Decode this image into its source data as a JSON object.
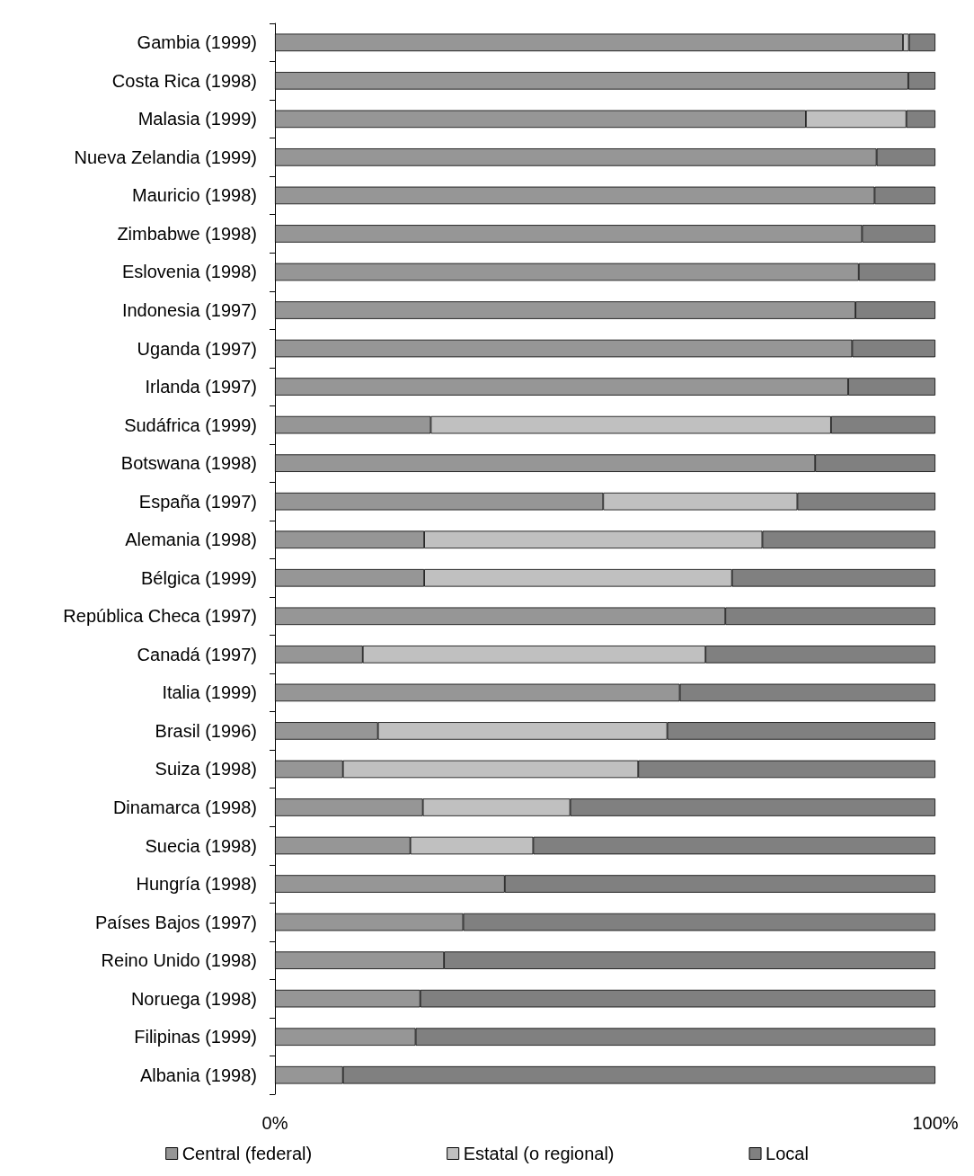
{
  "chart_data": {
    "type": "bar",
    "orientation": "horizontal",
    "stacked": true,
    "categories": [
      "Gambia (1999)",
      "Costa Rica (1998)",
      "Malasia (1999)",
      "Nueva Zelandia (1999)",
      "Mauricio (1998)",
      "Zimbabwe (1998)",
      "Eslovenia (1998)",
      "Indonesia (1997)",
      "Uganda (1997)",
      "Irlanda (1997)",
      "Sudáfrica (1999)",
      "Botswana (1998)",
      "España (1997)",
      "Alemania (1998)",
      "Bélgica (1999)",
      "República Checa (1997)",
      "Canadá (1997)",
      "Italia (1999)",
      "Brasil (1996)",
      "Suiza (1998)",
      "Dinamarca (1998)",
      "Suecia (1998)",
      "Hungría (1998)",
      "Países Bajos (1997)",
      "Reino Unido (1998)",
      "Noruega (1998)",
      "Filipinas (1999)",
      "Albania (1998)"
    ],
    "series": [
      {
        "name": "Central (federal)",
        "color": "#969696",
        "values": [
          95.1,
          95.9,
          80.4,
          91.1,
          90.8,
          88.9,
          88.4,
          87.9,
          87.4,
          86.8,
          23.6,
          81.8,
          49.7,
          22.6,
          22.6,
          68.2,
          13.3,
          61.3,
          15.6,
          10.3,
          22.4,
          20.5,
          34.8,
          28.5,
          25.6,
          22.0,
          21.3,
          10.3
        ]
      },
      {
        "name": "Estatal (o regional)",
        "color": "#c0c0c0",
        "values": [
          0.9,
          null,
          15.2,
          null,
          null,
          null,
          null,
          null,
          null,
          null,
          60.6,
          null,
          29.4,
          51.2,
          46.6,
          null,
          51.9,
          null,
          43.8,
          44.7,
          22.3,
          18.6,
          null,
          null,
          null,
          null,
          null,
          null
        ]
      },
      {
        "name": "Local",
        "color": "#808080",
        "values": [
          4.0,
          4.1,
          4.4,
          8.9,
          9.2,
          11.1,
          11.6,
          12.1,
          12.6,
          13.2,
          15.8,
          18.2,
          20.9,
          26.2,
          30.8,
          31.8,
          34.8,
          38.7,
          40.6,
          45.0,
          55.3,
          60.9,
          65.2,
          71.5,
          74.4,
          78.0,
          78.7,
          89.7
        ]
      }
    ],
    "xlim": [
      0,
      100
    ],
    "xticks": [
      {
        "value": 0,
        "label": "0%"
      },
      {
        "value": 100,
        "label": "100%"
      }
    ],
    "grid": false,
    "legend": "bottom"
  }
}
